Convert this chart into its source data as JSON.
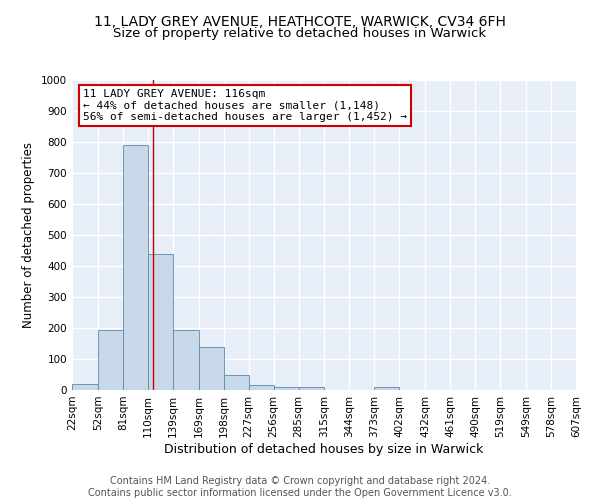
{
  "title1": "11, LADY GREY AVENUE, HEATHCOTE, WARWICK, CV34 6FH",
  "title2": "Size of property relative to detached houses in Warwick",
  "xlabel": "Distribution of detached houses by size in Warwick",
  "ylabel": "Number of detached properties",
  "bar_color": "#c8d8e8",
  "bar_edge_color": "#5a8ab0",
  "background_color": "#e8eef8",
  "grid_color": "#ffffff",
  "bins": [
    22,
    52,
    81,
    110,
    139,
    169,
    198,
    227,
    256,
    285,
    315,
    344,
    373,
    402,
    432,
    461,
    490,
    519,
    549,
    578,
    607
  ],
  "bin_labels": [
    "22sqm",
    "52sqm",
    "81sqm",
    "110sqm",
    "139sqm",
    "169sqm",
    "198sqm",
    "227sqm",
    "256sqm",
    "285sqm",
    "315sqm",
    "344sqm",
    "373sqm",
    "402sqm",
    "432sqm",
    "461sqm",
    "490sqm",
    "519sqm",
    "549sqm",
    "578sqm",
    "607sqm"
  ],
  "values": [
    18,
    195,
    790,
    440,
    195,
    140,
    50,
    15,
    10,
    10,
    0,
    0,
    10,
    0,
    0,
    0,
    0,
    0,
    0,
    0
  ],
  "property_size": 116,
  "vline_color": "#cc0000",
  "annotation_line1": "11 LADY GREY AVENUE: 116sqm",
  "annotation_line2": "← 44% of detached houses are smaller (1,148)",
  "annotation_line3": "56% of semi-detached houses are larger (1,452) →",
  "annotation_box_color": "#ffffff",
  "annotation_box_edge_color": "#cc0000",
  "footer_text": "Contains HM Land Registry data © Crown copyright and database right 2024.\nContains public sector information licensed under the Open Government Licence v3.0.",
  "ylim": [
    0,
    1000
  ],
  "yticks": [
    0,
    100,
    200,
    300,
    400,
    500,
    600,
    700,
    800,
    900,
    1000
  ],
  "title1_fontsize": 10,
  "title2_fontsize": 9.5,
  "xlabel_fontsize": 9,
  "ylabel_fontsize": 8.5,
  "tick_fontsize": 7.5,
  "footer_fontsize": 7,
  "annot_fontsize": 8
}
